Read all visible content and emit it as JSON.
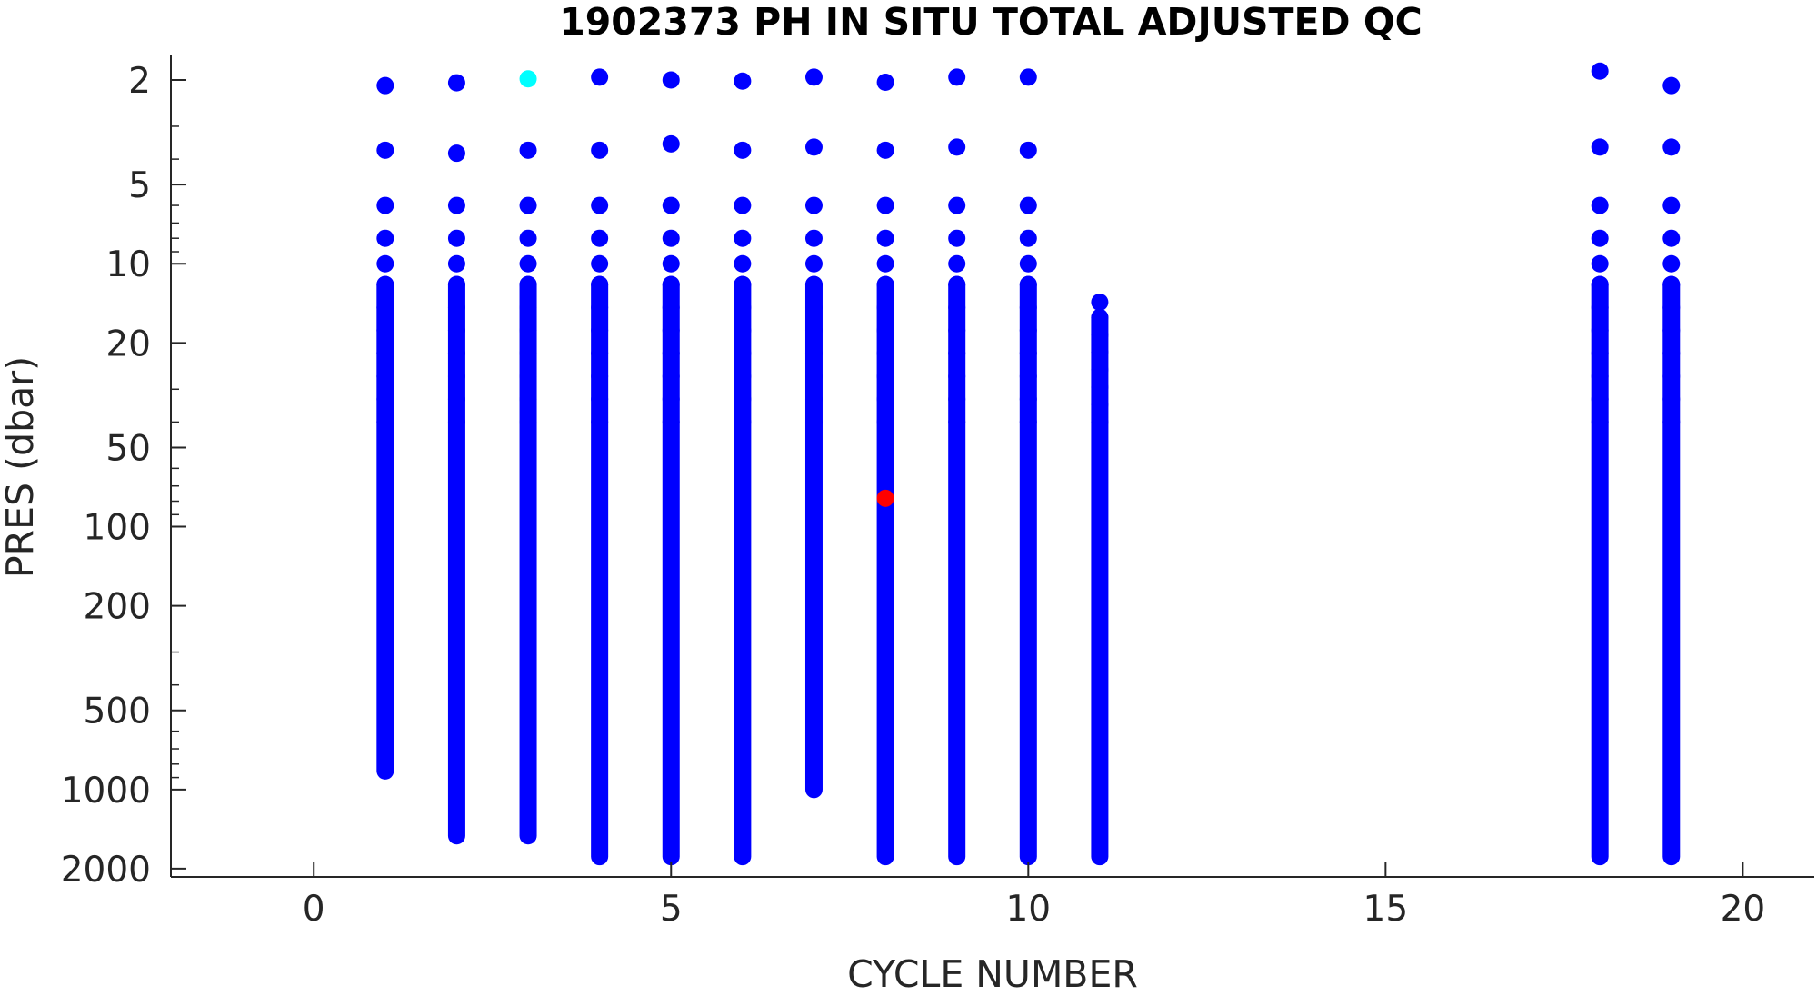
{
  "chart_data": {
    "type": "scatter",
    "title": "1902373  PH IN SITU TOTAL ADJUSTED QC",
    "xlabel": "CYCLE NUMBER",
    "ylabel": "PRES (dbar)",
    "xlim": [
      -2,
      21
    ],
    "ylim": [
      1.6,
      2150
    ],
    "y_scale": "log",
    "y_reversed": true,
    "grid": false,
    "x_ticks": [
      0,
      5,
      10,
      15,
      20
    ],
    "x_tick_labels": [
      "0",
      "5",
      "10",
      "15",
      "20"
    ],
    "y_ticks": [
      2,
      5,
      10,
      20,
      50,
      100,
      200,
      500,
      1000,
      2000
    ],
    "y_tick_labels": [
      "2",
      "5",
      "10",
      "20",
      "50",
      "100",
      "200",
      "500",
      "1000",
      "2000"
    ],
    "series": [
      {
        "color": "#0000ff",
        "profiles": [
          {
            "cycle": 1,
            "top": 2.1,
            "levels": [
              3.7,
              6.0,
              8.0,
              10.0
            ],
            "dense_from": 12.0,
            "dense_to": 850
          },
          {
            "cycle": 2,
            "top": 2.05,
            "levels": [
              3.8,
              6.0,
              8.0,
              10.0
            ],
            "dense_from": 12.0,
            "dense_to": 1500
          },
          {
            "cycle": 4,
            "top": 1.95,
            "levels": [
              3.7,
              6.0,
              8.0,
              10.0
            ],
            "dense_from": 12.0,
            "dense_to": 1800
          },
          {
            "cycle": 5,
            "top": 2.0,
            "levels": [
              3.5,
              6.0,
              8.0,
              10.0
            ],
            "dense_from": 12.0,
            "dense_to": 1800
          },
          {
            "cycle": 6,
            "top": 2.02,
            "levels": [
              3.7,
              6.0,
              8.0,
              10.0
            ],
            "dense_from": 12.0,
            "dense_to": 1800
          },
          {
            "cycle": 7,
            "top": 1.95,
            "levels": [
              3.6,
              6.0,
              8.0,
              10.0
            ],
            "dense_from": 12.0,
            "dense_to": 1000
          },
          {
            "cycle": 8,
            "top": 2.04,
            "levels": [
              3.7,
              6.0,
              8.0,
              10.0
            ],
            "dense_from": 12.0,
            "dense_to": 1800
          },
          {
            "cycle": 9,
            "top": 1.95,
            "levels": [
              3.6,
              6.0,
              8.0,
              10.0
            ],
            "dense_from": 12.0,
            "dense_to": 1800
          },
          {
            "cycle": 10,
            "top": 1.95,
            "levels": [
              3.7,
              6.0,
              8.0,
              10.0
            ],
            "dense_from": 12.0,
            "dense_to": 1800
          },
          {
            "cycle": 11,
            "top": 14.0,
            "levels": [],
            "dense_from": 16.0,
            "dense_to": 1800
          },
          {
            "cycle": 18,
            "top": 1.85,
            "levels": [
              3.6,
              6.0,
              8.0,
              10.0
            ],
            "dense_from": 12.0,
            "dense_to": 1800
          },
          {
            "cycle": 19,
            "top": 2.1,
            "levels": [
              3.6,
              6.0,
              8.0,
              10.0
            ],
            "dense_from": 12.0,
            "dense_to": 1800
          }
        ]
      },
      {
        "color": "#00ffff",
        "points": [
          {
            "cycle": 3,
            "pres": 1.98
          }
        ]
      },
      {
        "color": "#0000ff",
        "profiles": [
          {
            "cycle": 3,
            "top": null,
            "levels": [
              3.7,
              6.0,
              8.0,
              10.0
            ],
            "dense_from": 12.0,
            "dense_to": 1500
          }
        ]
      },
      {
        "color": "#ff0000",
        "points": [
          {
            "cycle": 8,
            "pres": 78
          }
        ]
      }
    ]
  }
}
